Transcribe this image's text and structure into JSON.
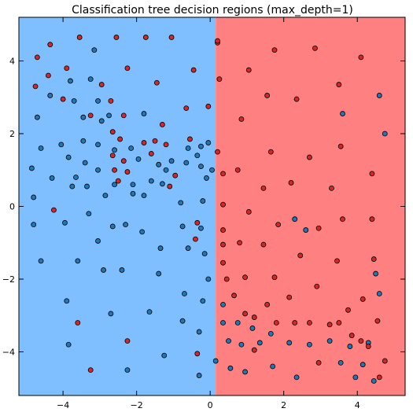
{
  "colors": {
    "region_class0": "#80bfff",
    "region_class1": "#ff8080",
    "point_class0": "#1f77b4",
    "point_class1": "#d62728",
    "point_edge": "#000000",
    "axes_edge": "#000000"
  },
  "chart_data": {
    "type": "scatter",
    "title": "Classification tree decision regions (max_depth=1)",
    "xlabel": "",
    "ylabel": "",
    "xlim": [
      -5.2,
      5.3
    ],
    "ylim": [
      -5.2,
      5.2
    ],
    "x_ticks": [
      -4,
      -2,
      0,
      2,
      4
    ],
    "x_tick_labels": [
      "−4",
      "−2",
      "0",
      "2",
      "4"
    ],
    "y_ticks": [
      4,
      2,
      0,
      -2,
      -4
    ],
    "y_tick_labels": [
      "4",
      "2",
      "0",
      "−2",
      "−4"
    ],
    "grid": false,
    "decision_regions": [
      {
        "class": 0,
        "x_from": -5.2,
        "x_to": 0.15,
        "color_key": "region_class0"
      },
      {
        "class": 1,
        "x_from": 0.15,
        "x_to": 5.3,
        "color_key": "region_class1"
      }
    ],
    "series": [
      {
        "class": 0,
        "color_key": "point_class0",
        "points": [
          [
            -3.15,
            4.3
          ],
          [
            -3.25,
            3.5
          ],
          [
            -3.8,
            3.45
          ],
          [
            -4.35,
            3.05
          ],
          [
            -3.7,
            2.9
          ],
          [
            -3.05,
            2.9
          ],
          [
            -2.75,
            2.5
          ],
          [
            -4.7,
            2.45
          ],
          [
            -3.45,
            2.45
          ],
          [
            -2.95,
            2.35
          ],
          [
            -1.8,
            2.55
          ],
          [
            -3.45,
            1.8
          ],
          [
            -4.05,
            1.7
          ],
          [
            -3.05,
            1.7
          ],
          [
            -4.6,
            1.6
          ],
          [
            -2.6,
            1.55
          ],
          [
            -2.15,
            1.6
          ],
          [
            -0.6,
            1.6
          ],
          [
            -0.25,
            1.65
          ],
          [
            -0.05,
            1.75
          ],
          [
            -3.85,
            1.35
          ],
          [
            -3.4,
            1.2
          ],
          [
            -1.95,
            1.3
          ],
          [
            -1.05,
            1.25
          ],
          [
            -0.65,
            1.2
          ],
          [
            -1.4,
            1.15
          ],
          [
            -0.35,
            1.4
          ],
          [
            -4.85,
            1.05
          ],
          [
            -3.05,
            1.0
          ],
          [
            -1.2,
            1.0
          ],
          [
            -0.25,
            1.1
          ],
          [
            0.05,
            1.0
          ],
          [
            -3.65,
            0.8
          ],
          [
            -4.3,
            0.78
          ],
          [
            -2.6,
            0.6
          ],
          [
            -0.1,
            0.78
          ],
          [
            -1.6,
            0.7
          ],
          [
            -3.75,
            0.55
          ],
          [
            -3.35,
            0.55
          ],
          [
            -2.1,
            0.6
          ],
          [
            -1.3,
            0.62
          ],
          [
            -4.8,
            0.25
          ],
          [
            -2.85,
            0.3
          ],
          [
            -2.1,
            0.35
          ],
          [
            -1.8,
            0.3
          ],
          [
            -0.8,
            0.1
          ],
          [
            -0.2,
            0.15
          ],
          [
            -3.3,
            -0.2
          ],
          [
            -4.8,
            -0.5
          ],
          [
            -3.95,
            -0.45
          ],
          [
            -2.65,
            -0.55
          ],
          [
            -2.3,
            -0.5
          ],
          [
            -1.85,
            -0.7
          ],
          [
            -0.75,
            -0.55
          ],
          [
            -0.25,
            -0.6
          ],
          [
            -3.05,
            -0.95
          ],
          [
            -1.35,
            -1.15
          ],
          [
            -0.6,
            -1.15
          ],
          [
            -0.15,
            -1.3
          ],
          [
            -4.6,
            -1.5
          ],
          [
            -3.6,
            -1.5
          ],
          [
            -2.9,
            -1.75
          ],
          [
            -2.4,
            -1.75
          ],
          [
            -1.4,
            -1.85
          ],
          [
            -0.05,
            -2.0
          ],
          [
            -0.7,
            -2.4
          ],
          [
            -3.9,
            -2.6
          ],
          [
            -0.2,
            -2.6
          ],
          [
            -1.65,
            -2.9
          ],
          [
            -2.7,
            -2.95
          ],
          [
            -0.75,
            -3.15
          ],
          [
            -3.85,
            -3.8
          ],
          [
            -0.3,
            -3.45
          ],
          [
            -1.25,
            -4.1
          ],
          [
            0.15,
            -4.25
          ],
          [
            -0.3,
            -4.65
          ],
          [
            -2.25,
            -4.5
          ],
          [
            0.35,
            -2.7
          ],
          [
            0.35,
            -3.2
          ],
          [
            0.75,
            -3.2
          ],
          [
            1.15,
            -3.35
          ],
          [
            1.65,
            -3.5
          ],
          [
            0.5,
            -3.7
          ],
          [
            0.85,
            -3.8
          ],
          [
            1.35,
            -3.75
          ],
          [
            2.15,
            -3.75
          ],
          [
            2.7,
            -3.8
          ],
          [
            3.25,
            -3.7
          ],
          [
            3.8,
            -3.85
          ],
          [
            4.3,
            -3.75
          ],
          [
            0.55,
            -4.45
          ],
          [
            0.95,
            -4.55
          ],
          [
            1.7,
            -4.4
          ],
          [
            2.35,
            -4.7
          ],
          [
            3.55,
            -4.3
          ],
          [
            4.15,
            -4.35
          ],
          [
            3.95,
            -4.7
          ],
          [
            4.45,
            -4.8
          ],
          [
            4.5,
            -1.85
          ],
          [
            4.6,
            -2.4
          ],
          [
            2.3,
            -0.35
          ],
          [
            2.6,
            -0.65
          ],
          [
            3.6,
            2.55
          ],
          [
            4.6,
            3.05
          ],
          [
            4.75,
            2.0
          ]
        ]
      },
      {
        "class": 1,
        "color_key": "point_class1",
        "points": [
          [
            -2.55,
            4.65
          ],
          [
            -4.35,
            4.45
          ],
          [
            -3.55,
            4.65
          ],
          [
            -1.75,
            4.65
          ],
          [
            -1.05,
            4.65
          ],
          [
            0.2,
            4.5
          ],
          [
            -4.7,
            4.1
          ],
          [
            -3.9,
            3.8
          ],
          [
            -2.25,
            3.8
          ],
          [
            -4.4,
            3.6
          ],
          [
            -0.45,
            3.75
          ],
          [
            -4.75,
            3.3
          ],
          [
            -2.95,
            3.35
          ],
          [
            -1.45,
            3.4
          ],
          [
            -4.0,
            2.95
          ],
          [
            -2.7,
            2.9
          ],
          [
            -0.65,
            2.7
          ],
          [
            -0.05,
            2.75
          ],
          [
            -3.25,
            2.5
          ],
          [
            -2.35,
            2.5
          ],
          [
            -1.3,
            2.25
          ],
          [
            -2.65,
            2.05
          ],
          [
            -2.45,
            1.85
          ],
          [
            -1.8,
            1.75
          ],
          [
            -1.5,
            1.8
          ],
          [
            -1.2,
            1.7
          ],
          [
            -0.55,
            1.85
          ],
          [
            -2.65,
            1.4
          ],
          [
            -1.6,
            1.45
          ],
          [
            -2.35,
            1.25
          ],
          [
            -2.6,
            1.0
          ],
          [
            -2.25,
            0.95
          ],
          [
            -0.95,
            0.85
          ],
          [
            -2.5,
            0.7
          ],
          [
            -1.1,
            0.55
          ],
          [
            -4.25,
            -0.1
          ],
          [
            -0.35,
            -0.45
          ],
          [
            -0.4,
            -0.9
          ],
          [
            -3.6,
            -3.2
          ],
          [
            -2.25,
            -3.7
          ],
          [
            -3.25,
            -4.5
          ],
          [
            -0.35,
            -4.05
          ],
          [
            0.2,
            4.55
          ],
          [
            0.25,
            3.5
          ],
          [
            1.05,
            3.75
          ],
          [
            0.85,
            2.4
          ],
          [
            1.75,
            4.3
          ],
          [
            2.85,
            4.35
          ],
          [
            4.1,
            4.1
          ],
          [
            3.5,
            3.35
          ],
          [
            1.55,
            3.05
          ],
          [
            2.35,
            2.95
          ],
          [
            3.55,
            1.65
          ],
          [
            1.65,
            1.5
          ],
          [
            2.7,
            1.35
          ],
          [
            0.2,
            1.5
          ],
          [
            0.35,
            0.9
          ],
          [
            0.75,
            1.0
          ],
          [
            4.4,
            0.9
          ],
          [
            2.2,
            0.65
          ],
          [
            1.45,
            0.5
          ],
          [
            3.3,
            0.5
          ],
          [
            0.35,
            0.05
          ],
          [
            1.05,
            -0.15
          ],
          [
            3.6,
            -0.35
          ],
          [
            4.4,
            -0.35
          ],
          [
            1.85,
            -0.5
          ],
          [
            2.95,
            -0.6
          ],
          [
            0.35,
            -0.65
          ],
          [
            0.35,
            -1.05
          ],
          [
            0.8,
            -1.0
          ],
          [
            1.45,
            -1.05
          ],
          [
            2.45,
            -1.35
          ],
          [
            0.35,
            -1.55
          ],
          [
            3.45,
            -1.5
          ],
          [
            4.45,
            -1.45
          ],
          [
            0.45,
            -2.0
          ],
          [
            0.95,
            -1.95
          ],
          [
            1.75,
            -1.95
          ],
          [
            2.9,
            -2.2
          ],
          [
            0.65,
            -2.45
          ],
          [
            1.55,
            -2.7
          ],
          [
            2.15,
            -2.5
          ],
          [
            4.15,
            -2.55
          ],
          [
            0.95,
            -2.95
          ],
          [
            1.2,
            -3.05
          ],
          [
            3.75,
            -2.85
          ],
          [
            1.8,
            -3.2
          ],
          [
            2.3,
            -3.2
          ],
          [
            2.7,
            -3.2
          ],
          [
            3.25,
            -3.25
          ],
          [
            3.5,
            -3.2
          ],
          [
            4.55,
            -3.15
          ],
          [
            3.85,
            -3.55
          ],
          [
            4.1,
            -3.7
          ],
          [
            4.3,
            -3.85
          ],
          [
            1.2,
            -3.95
          ],
          [
            2.95,
            -4.3
          ],
          [
            4.75,
            -4.25
          ],
          [
            4.6,
            -4.7
          ]
        ]
      }
    ]
  }
}
